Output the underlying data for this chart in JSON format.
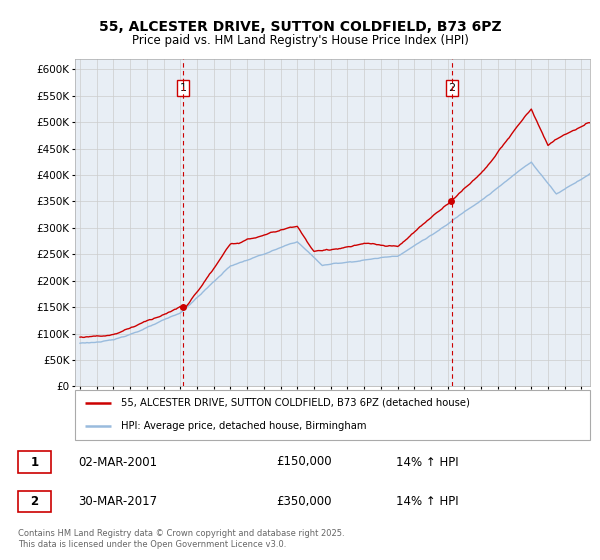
{
  "title_line1": "55, ALCESTER DRIVE, SUTTON COLDFIELD, B73 6PZ",
  "title_line2": "Price paid vs. HM Land Registry's House Price Index (HPI)",
  "ylim": [
    0,
    620000
  ],
  "yticks": [
    0,
    50000,
    100000,
    150000,
    200000,
    250000,
    300000,
    350000,
    400000,
    450000,
    500000,
    550000,
    600000
  ],
  "xlim_start": 1994.7,
  "xlim_end": 2025.5,
  "line1_color": "#cc0000",
  "line2_color": "#99bbdd",
  "vline_color": "#cc0000",
  "vline1_x": 2001.17,
  "vline2_x": 2017.25,
  "marker1_y": 150000,
  "marker2_y": 350000,
  "legend_label1": "55, ALCESTER DRIVE, SUTTON COLDFIELD, B73 6PZ (detached house)",
  "legend_label2": "HPI: Average price, detached house, Birmingham",
  "annotation1_label": "1",
  "annotation2_label": "2",
  "annotation1_date": "02-MAR-2001",
  "annotation1_price": "£150,000",
  "annotation1_hpi": "14% ↑ HPI",
  "annotation2_date": "30-MAR-2017",
  "annotation2_price": "£350,000",
  "annotation2_hpi": "14% ↑ HPI",
  "footer": "Contains HM Land Registry data © Crown copyright and database right 2025.\nThis data is licensed under the Open Government Licence v3.0.",
  "background_color": "#ffffff",
  "grid_color": "#cccccc",
  "chart_bg_color": "#e8eef5"
}
